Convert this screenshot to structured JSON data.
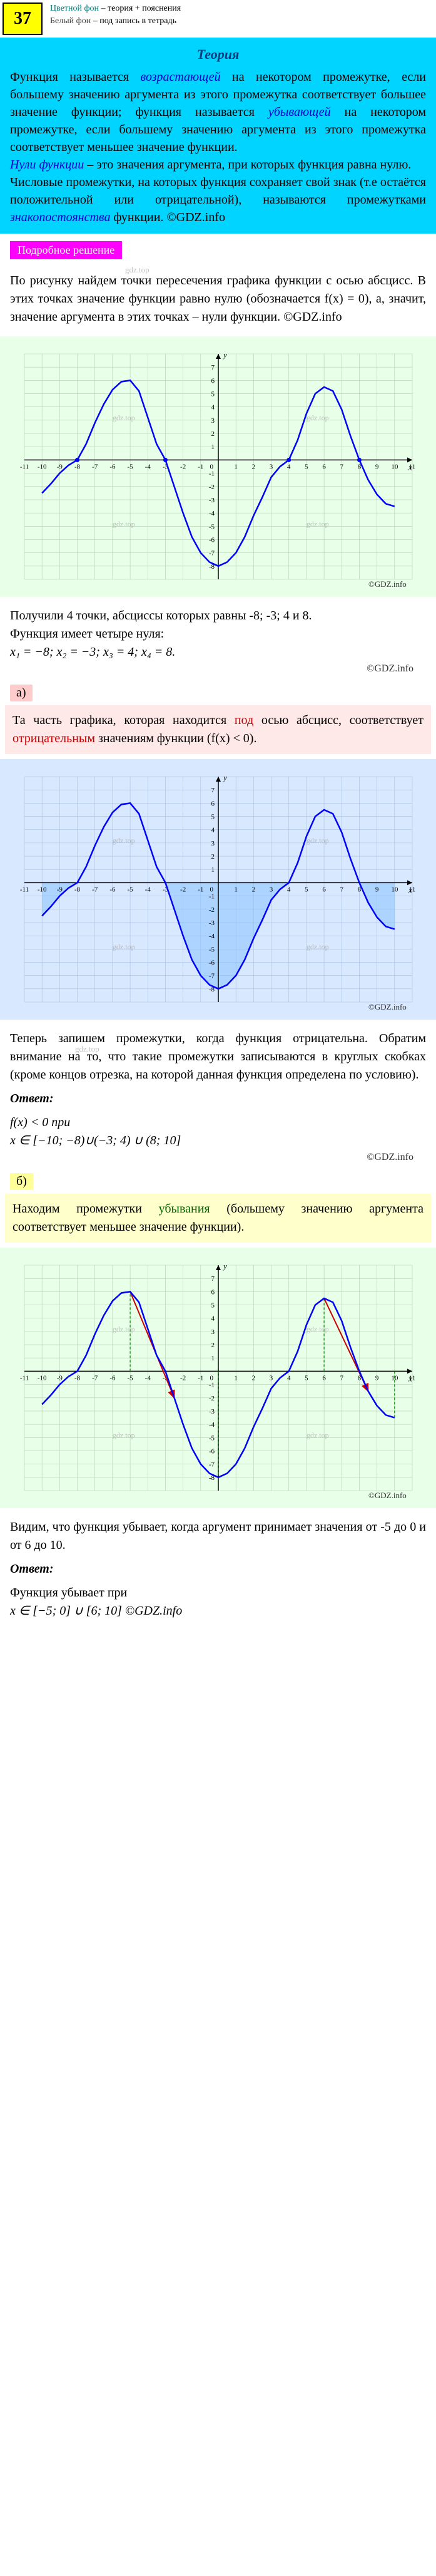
{
  "header": {
    "badge": "37",
    "legend_colored": "Цветной фон",
    "legend_colored_desc": " – теория + пояснения",
    "legend_white": "Белый фон",
    "legend_white_desc": " – под запись в тетрадь"
  },
  "theory": {
    "title": "Теория",
    "p1a": "Функция называется ",
    "p1b": "возрастающей",
    "p1c": " на некотором промежутке, если большему значению аргумента из этого промежутка соответствует большее значение функции; функция называется ",
    "p1d": "убывающей",
    "p1e": " на некотором промежутке, если большему значению аргумента из этого промежутка соответствует меньшее значение функции.",
    "p2a": "Нули функции",
    "p2b": " – это значения аргумента, при которых функция равна нулю.",
    "p3a": "Числовые промежутки, на которых функция сохраняет свой знак (т.е остаётся положительной или отрицательной), называются промежутками ",
    "p3b": "знакопостоянства",
    "p3c": " функции. ©GDZ.info"
  },
  "section_label": "Подробное решение",
  "solution": {
    "intro": "По рисунку найдем точки пересечения графика функции с осью абсцисс. В этих точках значение функции равно нулю (обозначается f(x) = 0), а, значит, значение аргумента в этих точках – нули функции. ©GDZ.info",
    "after_graph1": "Получили 4 точки, абсциссы которых равны -8; -3; 4 и 8.",
    "zeros_text": "Функция имеет четыре нуля:",
    "zeros_formula": "x₁ = −8;  x₂ = −3;  x₃ = 4;  x₄ = 8.",
    "copyright": "©GDZ.info"
  },
  "part_a": {
    "label": "а)",
    "p1a": "Та часть графика, которая находится ",
    "p1b": "под",
    "p1c": " осью абсцисс, соответствует ",
    "p1d": "отрицательным",
    "p1e": " значениям функции (f(x) < 0).",
    "p2": "Теперь запишем промежутки, когда функция отрицательна. Обратим внимание на то, что такие промежутки записываются в круглых скобках (кроме концов отрезка, на которой данная функция определена по условию).",
    "answer_label": "Ответ:",
    "answer_line1": "f(x) < 0 при",
    "answer_line2": "x ∈ [−10; −8)∪(−3; 4) ∪ (8; 10]",
    "copyright": "©GDZ.info"
  },
  "part_b": {
    "label": "б)",
    "p1a": "Находим промежутки ",
    "p1b": "убывания",
    "p1c": " (большему значению аргумента соответствует меньшее значение функции).",
    "p2": "Видим, что функция убывает, когда аргумент принимает значения от -5 до 0 и от 6 до 10.",
    "answer_label": "Ответ:",
    "answer_line1": "Функция убывает при",
    "answer_line2": "x ∈ [−5; 0] ∪ [6; 10]   ©GDZ.info"
  },
  "graph": {
    "xmin": -11,
    "xmax": 11,
    "ymin": -9,
    "ymax": 8,
    "x_ticks": [
      -11,
      -10,
      -9,
      -8,
      -7,
      -6,
      -5,
      -4,
      -3,
      -2,
      -1,
      1,
      2,
      3,
      4,
      5,
      6,
      7,
      8,
      9,
      10,
      11
    ],
    "y_ticks": [
      -8,
      -7,
      -6,
      -5,
      -4,
      -3,
      -2,
      -1,
      1,
      2,
      3,
      4,
      5,
      6,
      7
    ],
    "curve_color": "#0000ff",
    "grid_color": "#b0d0b0",
    "grid_color_blue": "#a8c0e0",
    "axis_color": "#000000",
    "highlight_fill": "#80c0ff",
    "highlight_opacity": 0.5,
    "curve_points": [
      [
        -10,
        -2.5
      ],
      [
        -9.5,
        -1.8
      ],
      [
        -9,
        -1
      ],
      [
        -8.5,
        -0.4
      ],
      [
        -8,
        0
      ],
      [
        -7.5,
        1.2
      ],
      [
        -7,
        2.8
      ],
      [
        -6.5,
        4.2
      ],
      [
        -6,
        5.3
      ],
      [
        -5.5,
        5.9
      ],
      [
        -5,
        6
      ],
      [
        -4.5,
        5.2
      ],
      [
        -4,
        3.2
      ],
      [
        -3.5,
        1.2
      ],
      [
        -3,
        0
      ],
      [
        -2.5,
        -2
      ],
      [
        -2,
        -4
      ],
      [
        -1.5,
        -5.8
      ],
      [
        -1,
        -7
      ],
      [
        -0.5,
        -7.7
      ],
      [
        0,
        -8
      ],
      [
        0.5,
        -7.7
      ],
      [
        1,
        -7
      ],
      [
        1.5,
        -5.8
      ],
      [
        2,
        -4.2
      ],
      [
        2.5,
        -2.8
      ],
      [
        3,
        -1.3
      ],
      [
        3.5,
        -0.5
      ],
      [
        4,
        0
      ],
      [
        4.5,
        1.5
      ],
      [
        5,
        3.5
      ],
      [
        5.5,
        5
      ],
      [
        6,
        5.5
      ],
      [
        6.5,
        5.2
      ],
      [
        7,
        3.8
      ],
      [
        7.5,
        1.8
      ],
      [
        8,
        0
      ],
      [
        8.5,
        -1.5
      ],
      [
        9,
        -2.6
      ],
      [
        9.5,
        -3.3
      ],
      [
        10,
        -3.5
      ]
    ]
  },
  "watermarks": [
    "gdz.top"
  ]
}
